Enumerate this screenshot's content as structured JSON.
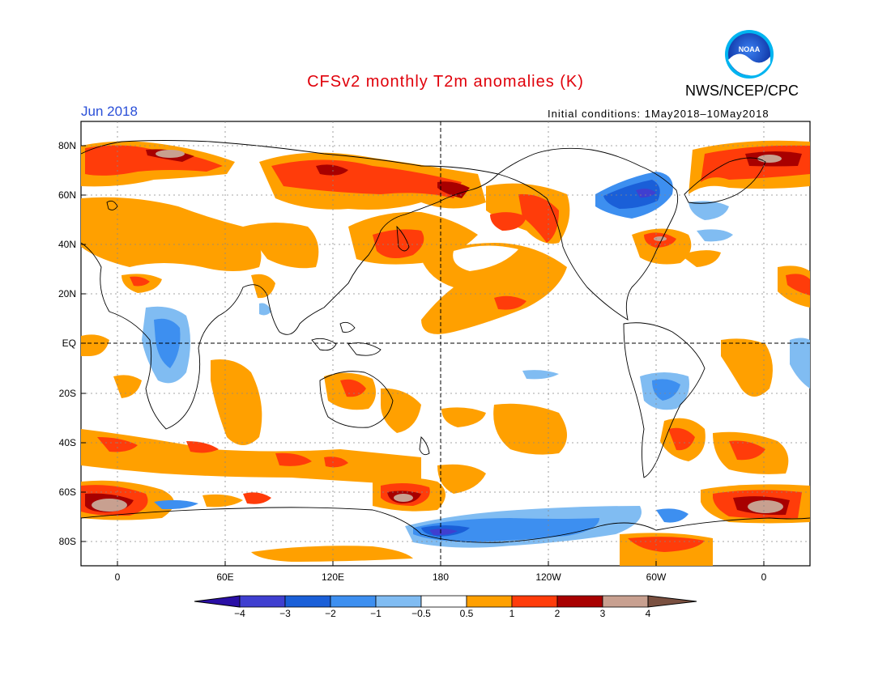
{
  "header": {
    "title": "CFSv2 monthly T2m anomalies (K)",
    "agency": "NWS/NCEP/CPC",
    "month": "Jun 2018",
    "initial_conditions": "Initial conditions: 1May2018–10May2018"
  },
  "logo": {
    "text": "NOAA"
  },
  "axes": {
    "lat_labels": [
      "80N",
      "60N",
      "40N",
      "20N",
      "EQ",
      "20S",
      "40S",
      "60S",
      "80S"
    ],
    "lon_labels": [
      "0",
      "60E",
      "120E",
      "180",
      "120W",
      "60W",
      "0"
    ]
  },
  "colorbar": {
    "labels": [
      "−4",
      "−3",
      "−2",
      "−1",
      "−0.5",
      "0.5",
      "1",
      "2",
      "3",
      "4"
    ],
    "colors": [
      "#2a0fa6",
      "#3f3fd0",
      "#1a5fd8",
      "#3d8ff0",
      "#80bcf2",
      "#ffffff",
      "#ffa000",
      "#ff3c0a",
      "#a80000",
      "#c8a090",
      "#7a5040"
    ]
  },
  "colors": {
    "title": "#e0000a",
    "month": "#2a4fd8"
  }
}
